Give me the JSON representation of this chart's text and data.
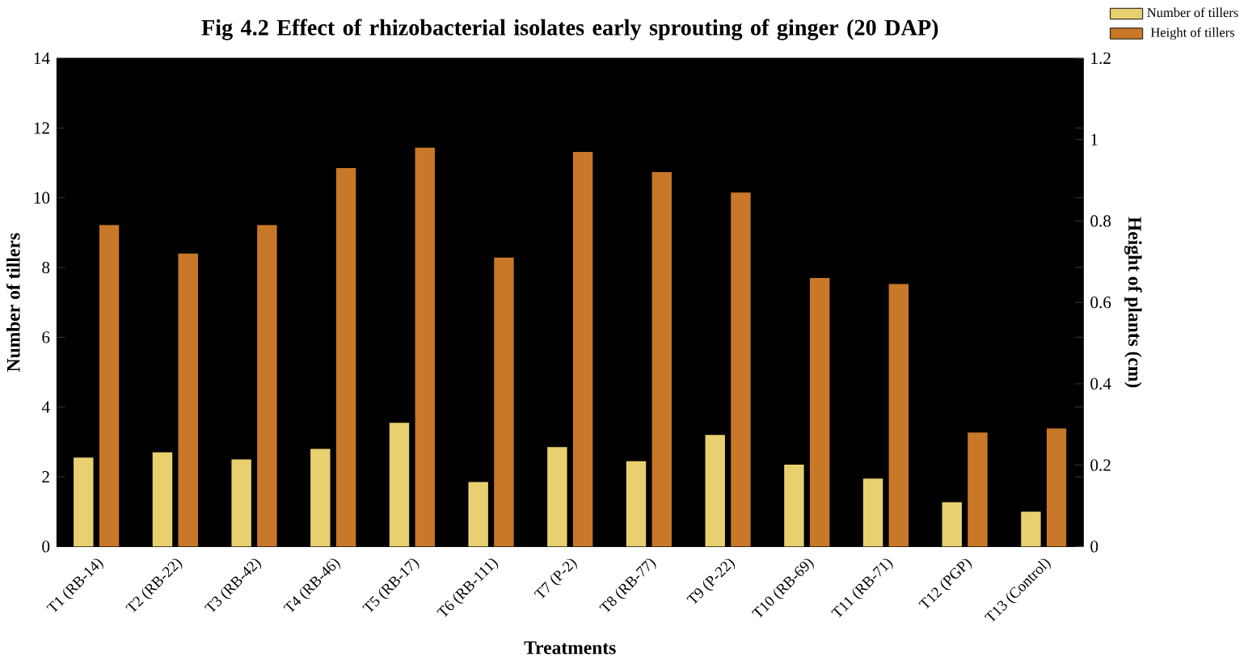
{
  "chart_data": {
    "type": "bar",
    "title": "Fig 4.2 Effect of rhizobacterial isolates early sprouting of ginger (20 DAP)",
    "categories": [
      "T1 (RB-14)",
      "T2 (RB-22)",
      "T3 (RB-42)",
      "T4 (RB-46)",
      "T5 (RB-17)",
      "T6 (RB-111)",
      "T7 (P-2)",
      "T8 (RB-77)",
      "T9 (P-22)",
      "T10 (RB-69)",
      "T11 (RB-71)",
      "T12 (PGP)",
      "T13 (Control)"
    ],
    "xlabel": "Treatments",
    "ylabel": "Number of tillers",
    "y2label": "Height of plants (cm)",
    "ylim": [
      0,
      14
    ],
    "yticks": [
      0,
      2,
      4,
      6,
      8,
      10,
      12,
      14
    ],
    "y2lim": [
      0,
      1.2
    ],
    "y2ticks": [
      0,
      0.2,
      0.4,
      0.6,
      0.8,
      1,
      1.2
    ],
    "legend": "top right",
    "series": [
      {
        "name": "Number of tillers",
        "color": "#e8d070",
        "values": [
          2.55,
          2.7,
          2.5,
          2.8,
          3.55,
          1.85,
          2.85,
          2.45,
          3.2,
          2.35,
          1.95,
          1.27,
          1.0
        ]
      },
      {
        "name": "Height of tillers",
        "color": "#c87828",
        "axis": "y2",
        "values": [
          0.79,
          0.72,
          0.79,
          0.93,
          0.98,
          0.71,
          0.97,
          0.92,
          0.87,
          0.66,
          0.645,
          0.28,
          0.29
        ]
      }
    ]
  }
}
